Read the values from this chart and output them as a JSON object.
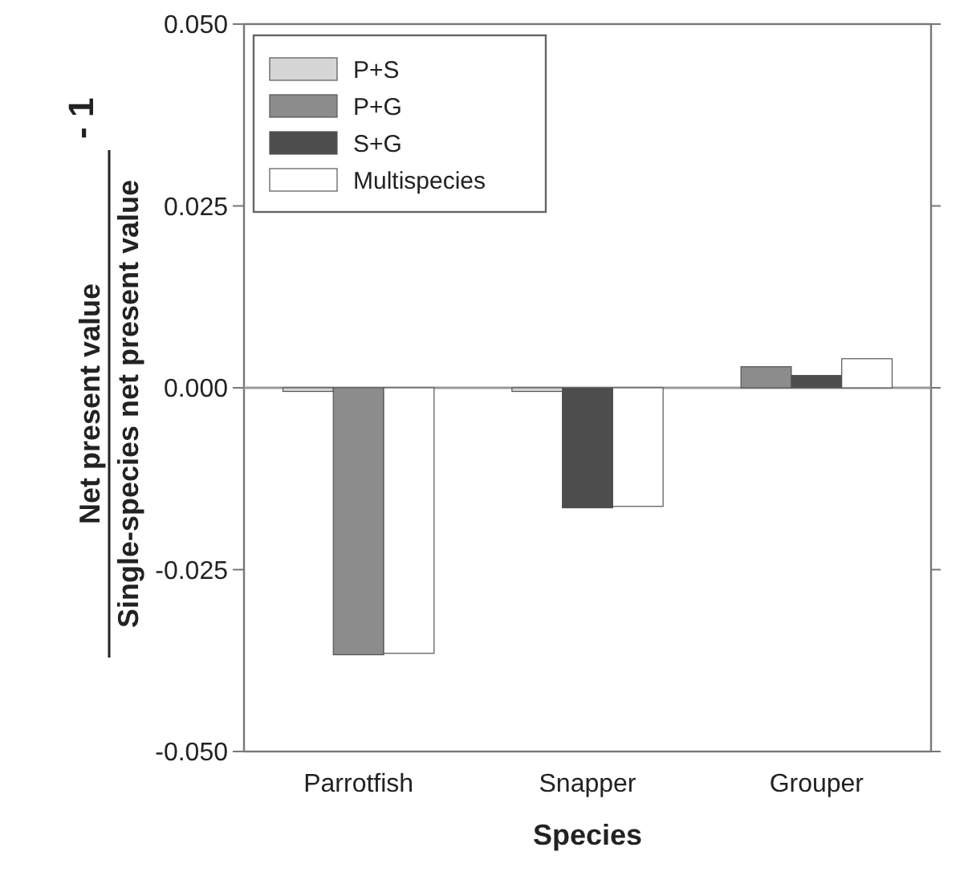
{
  "chart_data": {
    "type": "bar",
    "xlabel": "Species",
    "ylabel": "Net present value\nSingle-species net present value\n- 1",
    "categories": [
      "Parrotfish",
      "Snapper",
      "Grouper"
    ],
    "series": [
      {
        "name": "P+S",
        "color": "#d6d6d6",
        "values": [
          -0.0005,
          -0.0005,
          null
        ]
      },
      {
        "name": "P+G",
        "color": "#8c8c8c",
        "values": [
          -0.0367,
          null,
          0.0029
        ]
      },
      {
        "name": "S+G",
        "color": "#4d4d4d",
        "values": [
          null,
          -0.0165,
          0.0017
        ]
      },
      {
        "name": "Multispecies",
        "color": "#ffffff",
        "values": [
          -0.0365,
          -0.0163,
          0.004
        ]
      }
    ],
    "ylim": [
      -0.05,
      0.05
    ],
    "yticks": [
      {
        "value": -0.05,
        "label": "-0.050"
      },
      {
        "value": -0.025,
        "label": "-0.025"
      },
      {
        "value": 0,
        "label": "0.000"
      },
      {
        "value": 0.025,
        "label": "0.025"
      },
      {
        "value": 0.05,
        "label": "0.050"
      }
    ],
    "ref_lines": [
      {
        "axis": "y",
        "value": 0,
        "color": "#999999"
      }
    ],
    "grid": false,
    "legend": "top left"
  }
}
